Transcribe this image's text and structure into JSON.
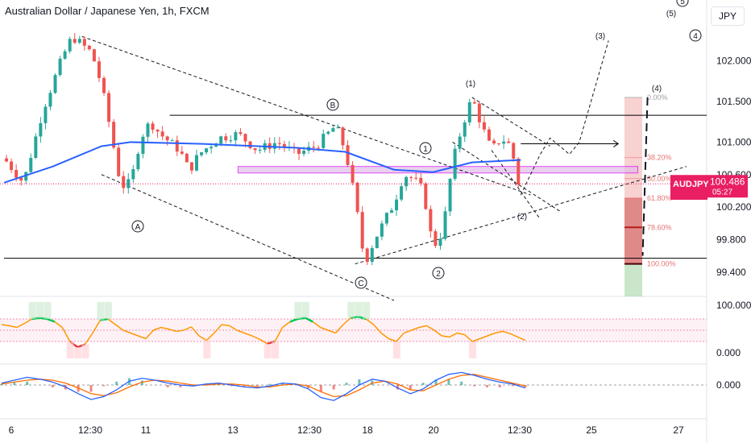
{
  "header": {
    "title": "Australian Dollar / Japanese Yen, 1h, FXCM",
    "currency_button": "JPY"
  },
  "symbol_tag": {
    "symbol": "AUDJPY",
    "price": "100.486",
    "countdown": "05:27"
  },
  "colors": {
    "up": "#26a69a",
    "down": "#ef5350",
    "ma": "#2962ff",
    "box": "#d500f9",
    "fib_zone": "#ef9a9a",
    "green_zone": "#a5d6a7",
    "osc_line": "#ff9800",
    "osc_hi": "#00c853",
    "osc_lo": "#e53935",
    "macd": "#2962ff",
    "signal": "#ff6d00",
    "price_tag": "#e91e63"
  },
  "chart_data": {
    "type": "line",
    "title": "Australian Dollar / Japanese Yen, 1h, FXCM",
    "price_axis": {
      "ticks": [
        "102.000",
        "101.500",
        "101.000",
        "100.600",
        "100.200",
        "99.800",
        "99.400"
      ],
      "values": [
        102.0,
        101.5,
        101.0,
        100.6,
        100.2,
        99.8,
        99.4
      ],
      "ylim": [
        99.1,
        102.75
      ]
    },
    "time_axis": {
      "ticks": [
        "6",
        "12:30",
        "11",
        "13",
        "12:30",
        "18",
        "20",
        "12:30",
        "25",
        "27"
      ]
    },
    "price_series": [
      {
        "t": 0,
        "p": 100.8
      },
      {
        "t": 2,
        "p": 100.5
      },
      {
        "t": 4,
        "p": 101.4
      },
      {
        "t": 6,
        "p": 102.05
      },
      {
        "t": 7,
        "p": 102.3
      },
      {
        "t": 9,
        "p": 102.1
      },
      {
        "t": 10,
        "p": 101.7
      },
      {
        "t": 11,
        "p": 101.1
      },
      {
        "t": 12,
        "p": 100.45
      },
      {
        "t": 13,
        "p": 100.5
      },
      {
        "t": 14,
        "p": 101.05
      },
      {
        "t": 15,
        "p": 101.25
      },
      {
        "t": 16,
        "p": 101.1
      },
      {
        "t": 18,
        "p": 100.9
      },
      {
        "t": 19,
        "p": 100.65
      },
      {
        "t": 20,
        "p": 100.85
      },
      {
        "t": 22,
        "p": 101.05
      },
      {
        "t": 24,
        "p": 101.1
      },
      {
        "t": 26,
        "p": 100.9
      },
      {
        "t": 28,
        "p": 101.0
      },
      {
        "t": 30,
        "p": 100.85
      },
      {
        "t": 32,
        "p": 100.95
      },
      {
        "t": 34,
        "p": 101.2
      },
      {
        "t": 35,
        "p": 100.9
      },
      {
        "t": 36,
        "p": 100.3
      },
      {
        "t": 37,
        "p": 99.5
      },
      {
        "t": 38,
        "p": 99.8
      },
      {
        "t": 40,
        "p": 100.25
      },
      {
        "t": 41,
        "p": 100.6
      },
      {
        "t": 42,
        "p": 100.55
      },
      {
        "t": 43,
        "p": 100.4
      },
      {
        "t": 44,
        "p": 99.7
      },
      {
        "t": 45,
        "p": 99.9
      },
      {
        "t": 46,
        "p": 100.75
      },
      {
        "t": 47,
        "p": 101.2
      },
      {
        "t": 48,
        "p": 101.55
      },
      {
        "t": 49,
        "p": 101.2
      },
      {
        "t": 50,
        "p": 100.9
      },
      {
        "t": 51,
        "p": 101.05
      },
      {
        "t": 52,
        "p": 100.95
      },
      {
        "t": 53,
        "p": 100.35
      }
    ],
    "moving_average": [
      {
        "t": 0,
        "p": 100.5
      },
      {
        "t": 5,
        "p": 100.7
      },
      {
        "t": 10,
        "p": 100.95
      },
      {
        "t": 13,
        "p": 101.0
      },
      {
        "t": 20,
        "p": 100.98
      },
      {
        "t": 30,
        "p": 100.93
      },
      {
        "t": 35,
        "p": 100.88
      },
      {
        "t": 40,
        "p": 100.66
      },
      {
        "t": 44,
        "p": 100.63
      },
      {
        "t": 48,
        "p": 100.75
      },
      {
        "t": 53,
        "p": 100.78
      }
    ],
    "horizontal_lines": [
      {
        "p": 101.33,
        "from": 17,
        "to": 77
      },
      {
        "p": 99.57,
        "from": 0,
        "to": 77
      },
      {
        "p": 100.98,
        "from": 53,
        "to": 63
      }
    ],
    "box": {
      "p_top": 100.7,
      "p_bottom": 100.62,
      "t_from": 24,
      "t_to": 65
    },
    "fibonacci": {
      "labels": [
        "0.00%",
        "38.20%",
        "50.00%",
        "61.80%",
        "78.60%",
        "100.00%"
      ],
      "values": [
        101.55,
        100.81,
        100.55,
        100.31,
        99.95,
        99.5
      ]
    },
    "wave_labels": {
      "A": "A",
      "B": "B",
      "C": "C",
      "w1": "1",
      "w2": "2",
      "p1": "(1)",
      "p2": "(2)",
      "p3": "(3)",
      "p4": "(4)",
      "p5": "(5)",
      "c4": "4",
      "c5": "5"
    },
    "oscillator": {
      "ticks": [
        "100.000",
        "0.000"
      ],
      "values": [
        60,
        58,
        55,
        62,
        70,
        72,
        70,
        65,
        55,
        30,
        20,
        25,
        45,
        68,
        70,
        60,
        50,
        45,
        40,
        35,
        50,
        55,
        52,
        48,
        50,
        56,
        40,
        32,
        45,
        60,
        58,
        50,
        45,
        40,
        34,
        26,
        30,
        55,
        65,
        70,
        72,
        65,
        55,
        50,
        45,
        60,
        72,
        74,
        70,
        60,
        45,
        35,
        30,
        45,
        50,
        55,
        58,
        50,
        40,
        38,
        45,
        42,
        30,
        35,
        40,
        45,
        48,
        44,
        38,
        32
      ]
    },
    "macd": {
      "ticks": [
        "0.000"
      ],
      "macd": [
        0.2,
        0.5,
        0.8,
        0.6,
        0.3,
        -0.2,
        -0.9,
        -1.5,
        -1.2,
        -0.5,
        0.4,
        0.7,
        0.5,
        0.2,
        0.0,
        -0.1,
        0.1,
        0.2,
        0.0,
        -0.2,
        -0.3,
        -0.1,
        0.2,
        0.1,
        -0.4,
        -1.3,
        -1.6,
        -0.9,
        0.0,
        0.6,
        0.4,
        -0.3,
        -0.9,
        -0.4,
        0.5,
        1.1,
        1.3,
        1.0,
        0.6,
        0.3,
        0.1,
        -0.3
      ],
      "signal": [
        0.1,
        0.3,
        0.5,
        0.6,
        0.5,
        0.2,
        -0.3,
        -0.9,
        -1.1,
        -0.8,
        -0.2,
        0.3,
        0.5,
        0.4,
        0.2,
        0.0,
        0.0,
        0.1,
        0.1,
        0.0,
        -0.2,
        -0.2,
        0.0,
        0.1,
        -0.1,
        -0.7,
        -1.2,
        -1.1,
        -0.5,
        0.2,
        0.4,
        0.1,
        -0.5,
        -0.6,
        0.0,
        0.6,
        1.0,
        1.1,
        0.8,
        0.5,
        0.2,
        -0.1
      ]
    }
  }
}
